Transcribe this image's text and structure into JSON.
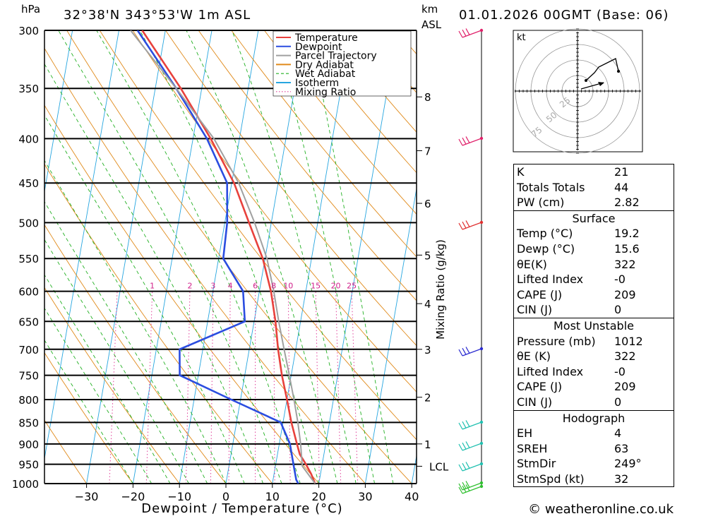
{
  "header": {
    "hpa_label": "hPa",
    "location": "32°38'N  343°53'W  1m  ASL",
    "km_label": "km",
    "asl_label": "ASL",
    "datetime": "01.01.2026  00GMT  (Base: 06)"
  },
  "footer": {
    "credit": "© weatheronline.co.uk"
  },
  "chart_data": {
    "type": "skew-t",
    "xlabel": "Dewpoint / Temperature (°C)",
    "ylabel": "hPa",
    "secondary_y_label": "Mixing Ratio (g/kg)",
    "xlim": [
      -40,
      40
    ],
    "ylim": [
      1000,
      300
    ],
    "pressure_ticks": [
      300,
      350,
      400,
      450,
      500,
      550,
      600,
      650,
      700,
      750,
      800,
      850,
      900,
      950,
      1000
    ],
    "temperature_ticks": [
      -30,
      -20,
      -10,
      0,
      10,
      20,
      30,
      40
    ],
    "km_ticks": [
      {
        "km": "1",
        "p": 900
      },
      {
        "km": "2",
        "p": 795
      },
      {
        "km": "3",
        "p": 700
      },
      {
        "km": "4",
        "p": 620
      },
      {
        "km": "5",
        "p": 545
      },
      {
        "km": "6",
        "p": 475
      },
      {
        "km": "7",
        "p": 413
      },
      {
        "km": "8",
        "p": 358
      }
    ],
    "lcl": {
      "label": "LCL",
      "p": 955
    },
    "mixing_ratio_labels": [
      "1",
      "2",
      "3",
      "4",
      "6",
      "8",
      "10",
      "15",
      "20",
      "25"
    ],
    "legend": {
      "position": "top-right",
      "items": [
        {
          "label": "Temperature",
          "color": "#e8413c",
          "style": "solid"
        },
        {
          "label": "Dewpoint",
          "color": "#2b4de0",
          "style": "solid"
        },
        {
          "label": "Parcel Trajectory",
          "color": "#a0a0a0",
          "style": "solid"
        },
        {
          "label": "Dry Adiabat",
          "color": "#e08a1a",
          "style": "solid"
        },
        {
          "label": "Wet Adiabat",
          "color": "#22b022",
          "style": "dashed"
        },
        {
          "label": "Isotherm",
          "color": "#27a6e0",
          "style": "solid"
        },
        {
          "label": "Mixing Ratio",
          "color": "#e0409a",
          "style": "dotted"
        }
      ]
    },
    "series": [
      {
        "name": "Temperature",
        "color": "#e8413c",
        "points": [
          [
            1000,
            19.2
          ],
          [
            975,
            18
          ],
          [
            950,
            16.5
          ],
          [
            925,
            14.8
          ],
          [
            900,
            13.8
          ],
          [
            850,
            11.8
          ],
          [
            800,
            10
          ],
          [
            750,
            8
          ],
          [
            700,
            6.2
          ],
          [
            650,
            4.6
          ],
          [
            600,
            2.5
          ],
          [
            550,
            -0.5
          ],
          [
            500,
            -4.8
          ],
          [
            450,
            -9.5
          ],
          [
            400,
            -16.2
          ],
          [
            350,
            -24.5
          ],
          [
            300,
            -35
          ]
        ]
      },
      {
        "name": "Dewpoint",
        "color": "#2b4de0",
        "points": [
          [
            1000,
            15.6
          ],
          [
            990,
            15
          ],
          [
            950,
            13.8
          ],
          [
            900,
            12.3
          ],
          [
            850,
            9.5
          ],
          [
            800,
            -2
          ],
          [
            750,
            -14
          ],
          [
            700,
            -15
          ],
          [
            650,
            -2
          ],
          [
            600,
            -3.5
          ],
          [
            550,
            -9
          ],
          [
            500,
            -9.5
          ],
          [
            450,
            -11
          ],
          [
            400,
            -17
          ],
          [
            350,
            -25.5
          ],
          [
            300,
            -36
          ]
        ]
      },
      {
        "name": "Parcel Trajectory",
        "color": "#a0a0a0",
        "points": [
          [
            1000,
            19.2
          ],
          [
            955,
            15.8
          ],
          [
            900,
            14.6
          ],
          [
            850,
            13.2
          ],
          [
            800,
            11.5
          ],
          [
            750,
            9.6
          ],
          [
            700,
            7.5
          ],
          [
            650,
            5.3
          ],
          [
            600,
            3.1
          ],
          [
            550,
            0.4
          ],
          [
            500,
            -3.6
          ],
          [
            450,
            -8.5
          ],
          [
            400,
            -15.5
          ],
          [
            350,
            -25.5
          ],
          [
            300,
            -37.5
          ]
        ]
      }
    ],
    "hodograph": {
      "unit_label": "kt",
      "ring_labels": [
        "25",
        "50",
        "75"
      ]
    }
  },
  "indices": [
    {
      "label": "K",
      "value": "21"
    },
    {
      "label": "Totals Totals",
      "value": "44"
    },
    {
      "label": "PW (cm)",
      "value": "2.82"
    }
  ],
  "surface": {
    "title": "Surface",
    "rows": [
      {
        "label": "Temp (°C)",
        "value": "19.2"
      },
      {
        "label": "Dewp (°C)",
        "value": "15.6"
      },
      {
        "label": "θE(K)",
        "value": "322"
      },
      {
        "label": "Lifted Index",
        "value": "-0"
      },
      {
        "label": "CAPE (J)",
        "value": "209"
      },
      {
        "label": "CIN (J)",
        "value": "0"
      }
    ]
  },
  "most_unstable": {
    "title": "Most Unstable",
    "rows": [
      {
        "label": "Pressure (mb)",
        "value": "1012"
      },
      {
        "label": "θE (K)",
        "value": "322"
      },
      {
        "label": "Lifted Index",
        "value": "-0"
      },
      {
        "label": "CAPE (J)",
        "value": "209"
      },
      {
        "label": "CIN (J)",
        "value": "0"
      }
    ]
  },
  "hodograph_table": {
    "title": "Hodograph",
    "rows": [
      {
        "label": "EH",
        "value": "4"
      },
      {
        "label": "SREH",
        "value": "63"
      },
      {
        "label": "StmDir",
        "value": "249°"
      },
      {
        "label": "StmSpd (kt)",
        "value": "32"
      }
    ]
  }
}
